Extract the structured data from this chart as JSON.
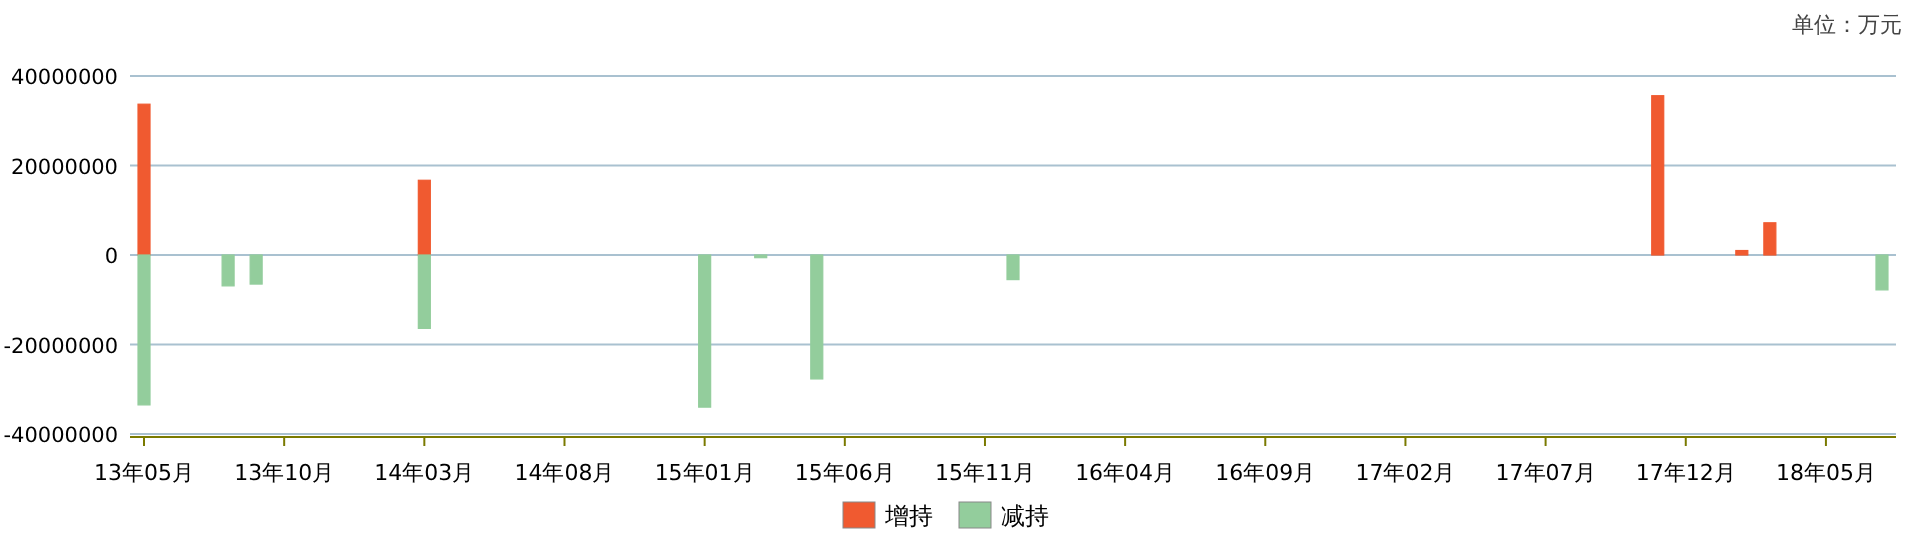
{
  "chart_data": {
    "type": "bar",
    "stacked": true,
    "grid": "y",
    "legend": "bottom",
    "annotations": [
      "单位：万元"
    ],
    "categories": [
      "13年05月",
      null,
      null,
      null,
      null,
      "13年10月",
      null,
      null,
      null,
      null,
      "14年03月",
      null,
      null,
      null,
      null,
      "14年08月",
      null,
      null,
      null,
      null,
      "15年01月",
      null,
      null,
      null,
      null,
      "15年06月",
      null,
      null,
      null,
      null,
      "15年11月",
      null,
      null,
      null,
      null,
      "16年04月",
      null,
      null,
      null,
      null,
      "16年09月",
      null,
      null,
      null,
      null,
      "17年02月",
      null,
      null,
      null,
      null,
      "17年07月",
      null,
      null,
      null,
      null,
      "17年12月",
      null,
      null,
      null,
      null,
      "18年05月",
      null,
      null
    ],
    "ylim": [
      -40000000,
      40000000
    ],
    "yticks": [
      -40000000,
      -20000000,
      0,
      20000000,
      40000000
    ],
    "series": [
      {
        "name": "增持",
        "color": "#f05a30",
        "values": [
          33700000,
          null,
          null,
          null,
          null,
          null,
          null,
          null,
          null,
          null,
          16700000,
          null,
          null,
          null,
          null,
          null,
          null,
          null,
          null,
          null,
          null,
          null,
          null,
          null,
          null,
          null,
          null,
          null,
          null,
          null,
          null,
          null,
          null,
          null,
          null,
          null,
          null,
          null,
          null,
          null,
          null,
          null,
          null,
          null,
          null,
          null,
          null,
          null,
          null,
          null,
          null,
          null,
          null,
          null,
          35600000,
          null,
          null,
          1000000,
          7200000,
          null,
          null,
          null,
          null
        ]
      },
      {
        "name": "减持",
        "color": "#93cd9c",
        "values": [
          -33500000,
          null,
          null,
          -6900000,
          -6500000,
          null,
          null,
          null,
          null,
          null,
          -16400000,
          null,
          null,
          null,
          null,
          null,
          null,
          null,
          null,
          null,
          -34000000,
          null,
          -600000,
          null,
          -27700000,
          null,
          null,
          null,
          null,
          null,
          null,
          -5500000,
          null,
          null,
          null,
          null,
          null,
          null,
          null,
          null,
          null,
          null,
          null,
          null,
          null,
          null,
          null,
          null,
          null,
          null,
          null,
          null,
          null,
          null,
          null,
          null,
          null,
          null,
          null,
          null,
          null,
          null,
          -7800000
        ]
      }
    ]
  }
}
